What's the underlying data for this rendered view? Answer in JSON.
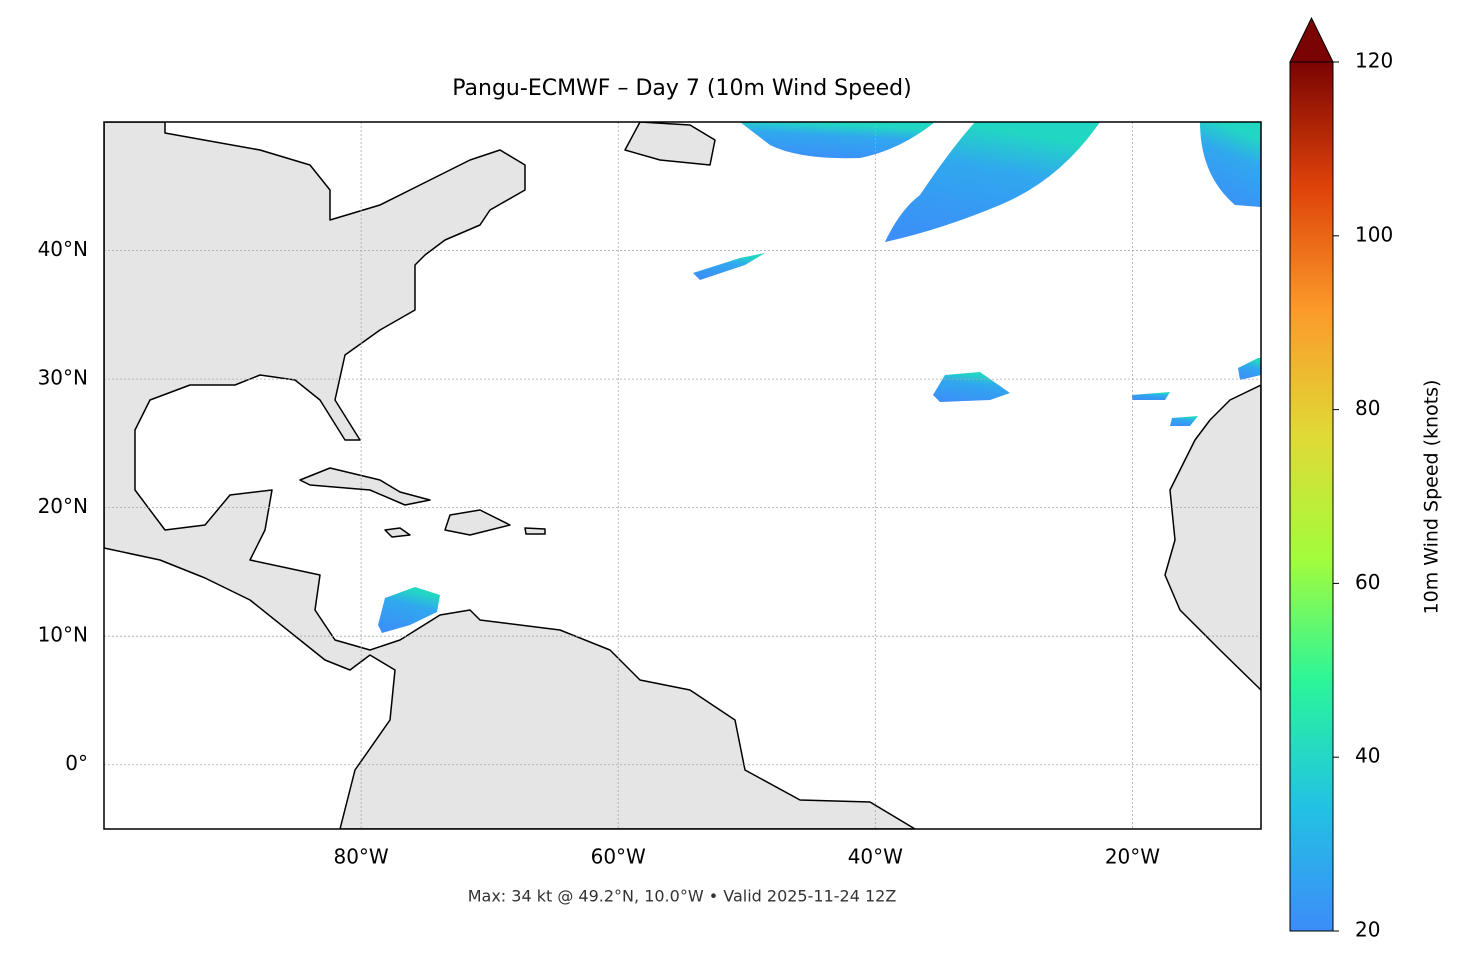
{
  "chart_data": {
    "type": "map",
    "title": "Pangu-ECMWF – Day 7 (10m Wind Speed)",
    "footnote": "Max: 34 kt @ 49.2°N, 10.0°W • Valid 2025-11-24 12Z",
    "xlim": [
      -100,
      -10
    ],
    "ylim": [
      -5,
      50
    ],
    "xticks": [
      {
        "value": -80,
        "label": "80°W"
      },
      {
        "value": -60,
        "label": "60°W"
      },
      {
        "value": -40,
        "label": "40°W"
      },
      {
        "value": -20,
        "label": "20°W"
      }
    ],
    "yticks": [
      {
        "value": 0,
        "label": "0°"
      },
      {
        "value": 10,
        "label": "10°N"
      },
      {
        "value": 20,
        "label": "20°N"
      },
      {
        "value": 30,
        "label": "30°N"
      },
      {
        "value": 40,
        "label": "40°N"
      }
    ],
    "grid": true,
    "colorbar": {
      "label": "10m Wind Speed (knots)",
      "lim": [
        20,
        120
      ],
      "ticks": [
        20,
        40,
        60,
        80,
        100,
        120
      ],
      "extend": "max",
      "colormap": [
        "#3d8cf9",
        "#22c2e3",
        "#2af59a",
        "#a3fc3c",
        "#e0d936",
        "#fb9a2a",
        "#de4209",
        "#7a0403"
      ]
    }
  }
}
